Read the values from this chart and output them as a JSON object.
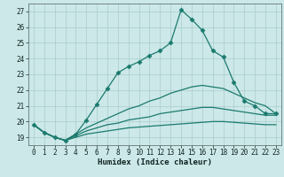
{
  "title": "",
  "xlabel": "Humidex (Indice chaleur)",
  "background_color": "#cce8e8",
  "grid_color": "#aacccc",
  "line_color": "#1a7a6e",
  "xlim": [
    -0.5,
    23.5
  ],
  "ylim": [
    18.5,
    27.5
  ],
  "yticks": [
    19,
    20,
    21,
    22,
    23,
    24,
    25,
    26,
    27
  ],
  "xticks": [
    0,
    1,
    2,
    3,
    4,
    5,
    6,
    7,
    8,
    9,
    10,
    11,
    12,
    13,
    14,
    15,
    16,
    17,
    18,
    19,
    20,
    21,
    22,
    23
  ],
  "series": [
    [
      19.8,
      19.3,
      19.0,
      18.8,
      19.2,
      20.1,
      21.1,
      22.1,
      23.1,
      23.5,
      23.8,
      24.2,
      24.5,
      25.0,
      27.1,
      26.5,
      25.8,
      24.5,
      24.1,
      22.5,
      21.3,
      21.0,
      20.5,
      20.5
    ],
    [
      19.8,
      19.3,
      19.0,
      18.8,
      19.2,
      19.6,
      19.9,
      20.2,
      20.5,
      20.8,
      21.0,
      21.3,
      21.5,
      21.8,
      22.0,
      22.2,
      22.3,
      22.2,
      22.1,
      21.8,
      21.5,
      21.2,
      21.0,
      20.5
    ],
    [
      19.8,
      19.3,
      19.0,
      18.8,
      19.1,
      19.4,
      19.6,
      19.8,
      19.9,
      20.1,
      20.2,
      20.3,
      20.5,
      20.6,
      20.7,
      20.8,
      20.9,
      20.9,
      20.8,
      20.7,
      20.6,
      20.5,
      20.4,
      20.4
    ],
    [
      19.8,
      19.3,
      19.0,
      18.8,
      19.0,
      19.2,
      19.3,
      19.4,
      19.5,
      19.6,
      19.65,
      19.7,
      19.75,
      19.8,
      19.85,
      19.9,
      19.95,
      20.0,
      20.0,
      19.95,
      19.9,
      19.85,
      19.8,
      19.8
    ]
  ]
}
